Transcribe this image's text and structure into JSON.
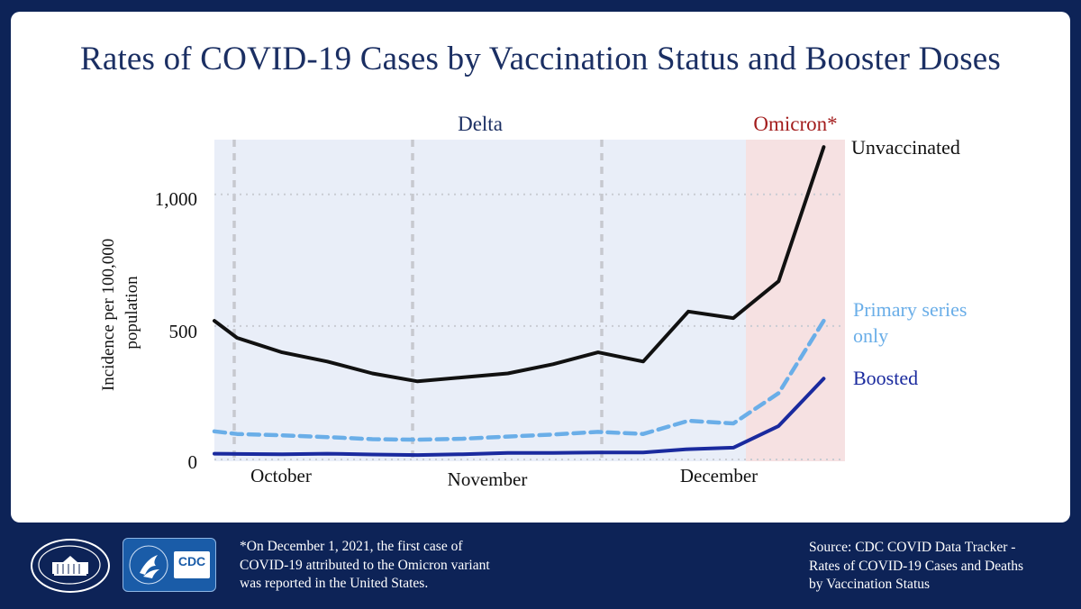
{
  "title": "Rates of COVID-19 Cases by Vaccination Status and Booster Doses",
  "chart_data": {
    "type": "line",
    "title": "Rates of COVID-19 Cases by Vaccination Status and Booster Doses",
    "xlabel": "",
    "ylabel": "Incidence per 100,000 population",
    "ylim": [
      0,
      1250
    ],
    "y_ticks": [
      0,
      500,
      1000
    ],
    "y_tick_labels": [
      "0",
      "500",
      "1,000"
    ],
    "x_tick_labels": [
      "October",
      "November",
      "December"
    ],
    "periods": [
      {
        "name": "Delta",
        "color": "#1b2f63"
      },
      {
        "name": "Omicron*",
        "color": "#a31d1d"
      }
    ],
    "week_index": [
      0,
      0.5,
      1.5,
      2.5,
      3.5,
      4.5,
      5.5,
      6.5,
      7.5,
      8.5,
      9.5,
      10.5,
      11.5,
      12.5,
      13.5
    ],
    "series": [
      {
        "name": "Unvaccinated",
        "style": "solid",
        "color": "#111111",
        "values": [
          520,
          455,
          400,
          365,
          320,
          290,
          305,
          320,
          355,
          400,
          365,
          555,
          530,
          670,
          1180
        ]
      },
      {
        "name": "Primary series only",
        "style": "dashed",
        "color": "#6aaee8",
        "values": [
          100,
          90,
          85,
          78,
          70,
          68,
          72,
          80,
          88,
          98,
          90,
          140,
          130,
          245,
          520
        ]
      },
      {
        "name": "Boosted",
        "style": "solid",
        "color": "#1a2a9e",
        "values": [
          15,
          14,
          13,
          15,
          12,
          10,
          13,
          18,
          18,
          20,
          20,
          32,
          38,
          120,
          300
        ]
      }
    ]
  },
  "labels": {
    "delta": "Delta",
    "omicron": "Omicron*",
    "unvaccinated": "Unvaccinated",
    "primary_line1": "Primary series",
    "primary_line2": "only",
    "boosted": "Boosted",
    "y_axis_line1": "Incidence per 100,000",
    "y_axis_line2": "population"
  },
  "colors": {
    "background": "#0d2357",
    "delta_shade": "#e9eef8",
    "omicron_shade": "#f6e1e2",
    "title": "#1b2f63"
  },
  "footer": {
    "note_line1": "*On December 1, 2021, the first case of",
    "note_line2": "COVID-19 attributed to the Omicron variant",
    "note_line3": "was reported in the United States.",
    "source_line1": "Source: CDC COVID Data Tracker -",
    "source_line2": "Rates of COVID-19 Cases and Deaths",
    "source_line3": "by Vaccination Status",
    "cdc_logo_text": "CDC"
  }
}
